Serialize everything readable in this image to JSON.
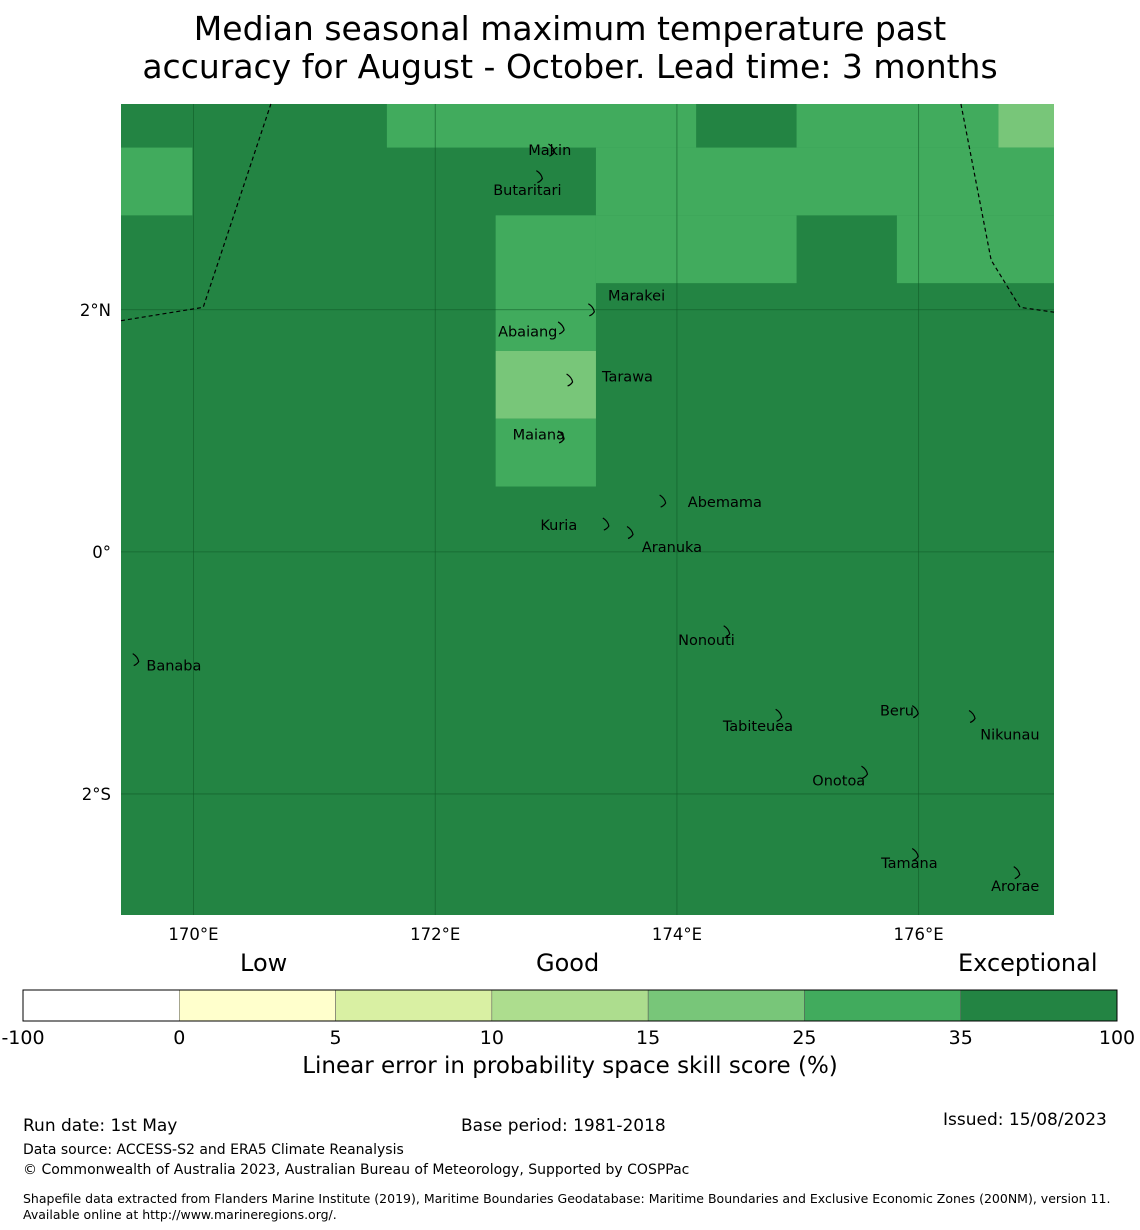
{
  "title": {
    "line1": "Median seasonal maximum temperature past",
    "line2": "accuracy for August - October. Lead time: 3 months"
  },
  "map": {
    "lon_range": [
      169.4,
      177.12
    ],
    "lat_range": [
      -3.0,
      3.7
    ],
    "x_ticks": [
      {
        "lon": 170,
        "label": "170°E"
      },
      {
        "lon": 172,
        "label": "172°E"
      },
      {
        "lon": 174,
        "label": "174°E"
      },
      {
        "lon": 176,
        "label": "176°E"
      }
    ],
    "y_ticks": [
      {
        "lat": 2,
        "label": "2°N"
      },
      {
        "lat": 0,
        "label": "0°"
      },
      {
        "lat": -2,
        "label": "2°S"
      }
    ],
    "background_category": 6,
    "cells": [
      {
        "lon0": 171.6,
        "lon1": 174.16,
        "lat0": 3.34,
        "lat1": 3.7,
        "cat": 5
      },
      {
        "lon0": 174.16,
        "lon1": 174.99,
        "lat0": 3.34,
        "lat1": 3.7,
        "cat": 6
      },
      {
        "lon0": 174.99,
        "lon1": 176.66,
        "lat0": 3.34,
        "lat1": 3.7,
        "cat": 5
      },
      {
        "lon0": 176.66,
        "lon1": 177.12,
        "lat0": 3.34,
        "lat1": 3.7,
        "cat": 4
      },
      {
        "lon0": 169.4,
        "lon1": 169.99,
        "lat0": 2.78,
        "lat1": 3.34,
        "cat": 5
      },
      {
        "lon0": 173.33,
        "lon1": 177.12,
        "lat0": 2.78,
        "lat1": 3.34,
        "cat": 5
      },
      {
        "lon0": 172.5,
        "lon1": 173.33,
        "lat0": 1.66,
        "lat1": 2.78,
        "cat": 5
      },
      {
        "lon0": 173.33,
        "lon1": 174.99,
        "lat0": 2.22,
        "lat1": 2.78,
        "cat": 5
      },
      {
        "lon0": 175.82,
        "lon1": 177.12,
        "lat0": 2.22,
        "lat1": 2.78,
        "cat": 5
      },
      {
        "lon0": 172.5,
        "lon1": 173.33,
        "lat0": 1.1,
        "lat1": 1.66,
        "cat": 4
      },
      {
        "lon0": 172.5,
        "lon1": 173.33,
        "lat0": 0.54,
        "lat1": 1.1,
        "cat": 5
      }
    ],
    "boundaries": [
      [
        [
          169.4,
          1.91
        ],
        [
          170.08,
          2.02
        ],
        [
          170.64,
          3.7
        ]
      ],
      [
        [
          176.35,
          3.7
        ],
        [
          176.6,
          2.41
        ],
        [
          176.84,
          2.02
        ],
        [
          177.12,
          1.98
        ]
      ]
    ],
    "places": [
      {
        "name": "Makin",
        "lon": 172.97,
        "lat": 3.32,
        "label_lon": 172.77,
        "label_lat": 3.32
      },
      {
        "name": "Butaritari",
        "lon": 172.87,
        "lat": 3.1,
        "label_lon": 172.48,
        "label_lat": 2.99
      },
      {
        "name": "Marakei",
        "lon": 173.3,
        "lat": 2.0,
        "label_lon": 173.43,
        "label_lat": 2.12
      },
      {
        "name": "Abaiang",
        "lon": 173.05,
        "lat": 1.85,
        "label_lon": 172.52,
        "label_lat": 1.82
      },
      {
        "name": "Tarawa",
        "lon": 173.12,
        "lat": 1.42,
        "label_lon": 173.38,
        "label_lat": 1.45
      },
      {
        "name": "Maiana",
        "lon": 173.05,
        "lat": 0.95,
        "label_lon": 172.64,
        "label_lat": 0.97
      },
      {
        "name": "Abemama",
        "lon": 173.89,
        "lat": 0.42,
        "label_lon": 174.09,
        "label_lat": 0.41
      },
      {
        "name": "Kuria",
        "lon": 173.42,
        "lat": 0.23,
        "label_lon": 172.87,
        "label_lat": 0.22
      },
      {
        "name": "Aranuka",
        "lon": 173.62,
        "lat": 0.16,
        "label_lon": 173.71,
        "label_lat": 0.04
      },
      {
        "name": "Nonouti",
        "lon": 174.42,
        "lat": -0.66,
        "label_lon": 174.01,
        "label_lat": -0.73
      },
      {
        "name": "Banaba",
        "lon": 169.53,
        "lat": -0.89,
        "label_lon": 169.61,
        "label_lat": -0.94
      },
      {
        "name": "Beru",
        "lon": 175.98,
        "lat": -1.32,
        "label_lon": 175.68,
        "label_lat": -1.31
      },
      {
        "name": "Tabiteuea",
        "lon": 174.85,
        "lat": -1.35,
        "label_lon": 174.38,
        "label_lat": -1.44
      },
      {
        "name": "Nikunau",
        "lon": 176.45,
        "lat": -1.36,
        "label_lon": 176.51,
        "label_lat": -1.51
      },
      {
        "name": "Onotoa",
        "lon": 175.56,
        "lat": -1.82,
        "label_lon": 175.12,
        "label_lat": -1.89
      },
      {
        "name": "Tamana",
        "lon": 175.98,
        "lat": -2.5,
        "label_lon": 175.69,
        "label_lat": -2.57
      },
      {
        "name": "Arorae",
        "lon": 176.82,
        "lat": -2.65,
        "label_lon": 176.6,
        "label_lat": -2.76
      }
    ]
  },
  "legend": {
    "categories_text": [
      "Low",
      "Good",
      "Exceptional"
    ],
    "title": "Linear error in probability space skill score (%)",
    "bins": [
      {
        "from": "-100",
        "to": "0",
        "color": "#ffffff"
      },
      {
        "from": "0",
        "to": "5",
        "color": "#ffffcc"
      },
      {
        "from": "5",
        "to": "10",
        "color": "#d9f0a3"
      },
      {
        "from": "10",
        "to": "15",
        "color": "#addd8e"
      },
      {
        "from": "15",
        "to": "25",
        "color": "#78c679"
      },
      {
        "from": "25",
        "to": "35",
        "color": "#41ab5d"
      },
      {
        "from": "35",
        "to": "100",
        "color": "#238443"
      }
    ],
    "tick_labels": [
      "-100",
      "0",
      "5",
      "10",
      "15",
      "25",
      "35",
      "100"
    ]
  },
  "footer": {
    "run_date": "Run date: 1st May",
    "base_period": "Base period: 1981-2018",
    "issued": "Issued: 15/08/2023",
    "data_source": "Data source: ACCESS-S2 and ERA5 Climate Reanalysis",
    "copyright": "© Commonwealth of Australia 2023, Australian Bureau of Meteorology, Supported by COSPPac",
    "shapefile": "Shapefile data extracted from Flanders Marine Institute (2019), Maritime Boundaries Geodatabase: Maritime Boundaries and Exclusive Economic Zones (200NM), version 11. Available online at http://www.marineregions.org/."
  }
}
